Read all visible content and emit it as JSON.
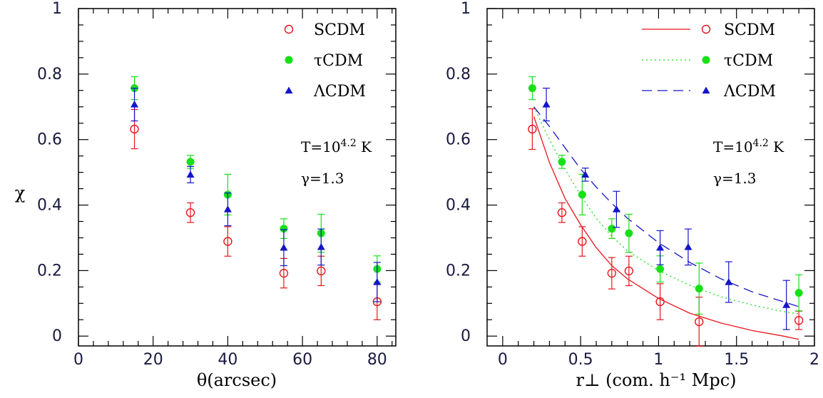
{
  "colors": {
    "SCDM": "#e8141c",
    "tauCDM": "#18e018",
    "LambdaCDM": "#1414c8",
    "axis": "#000000",
    "ticklabel": "#1a1a40"
  },
  "chart_data": [
    {
      "type": "scatter",
      "xlabel": "θ(arcsec)",
      "ylabel": "χ",
      "xlim": [
        0,
        85
      ],
      "ylim": [
        -0.03,
        1.0
      ],
      "xticks": [
        "0",
        "20",
        "40",
        "60",
        "80"
      ],
      "yticks": [
        "0",
        "0.2",
        "0.4",
        "0.6",
        "0.8",
        "1"
      ],
      "legend_position": "top-right",
      "series": [
        {
          "name": "SCDM",
          "marker": "open-circle",
          "points": [
            {
              "x": 15,
              "y": 0.632,
              "err": 0.06
            },
            {
              "x": 30,
              "y": 0.377,
              "err": 0.03
            },
            {
              "x": 40,
              "y": 0.289,
              "err": 0.045
            },
            {
              "x": 55,
              "y": 0.192,
              "err": 0.045
            },
            {
              "x": 65,
              "y": 0.199,
              "err": 0.045
            },
            {
              "x": 80,
              "y": 0.105,
              "err": 0.055
            }
          ]
        },
        {
          "name": "τCDM",
          "marker": "filled-circle",
          "points": [
            {
              "x": 15,
              "y": 0.757,
              "err": 0.035
            },
            {
              "x": 30,
              "y": 0.532,
              "err": 0.02
            },
            {
              "x": 40,
              "y": 0.432,
              "err": 0.062
            },
            {
              "x": 55,
              "y": 0.328,
              "err": 0.03
            },
            {
              "x": 65,
              "y": 0.314,
              "err": 0.058
            },
            {
              "x": 80,
              "y": 0.205,
              "err": 0.04
            }
          ]
        },
        {
          "name": "ΛCDM",
          "marker": "filled-triangle",
          "points": [
            {
              "x": 15,
              "y": 0.707,
              "err": 0.05
            },
            {
              "x": 30,
              "y": 0.493,
              "err": 0.025
            },
            {
              "x": 40,
              "y": 0.387,
              "err": 0.05
            },
            {
              "x": 55,
              "y": 0.27,
              "err": 0.055
            },
            {
              "x": 65,
              "y": 0.272,
              "err": 0.055
            },
            {
              "x": 80,
              "y": 0.165,
              "err": 0.06
            }
          ]
        }
      ],
      "annotations": [
        {
          "base": "T=10",
          "sup": "4.2",
          "suffix": " K"
        },
        {
          "base": "γ=1.3",
          "sup": "",
          "suffix": ""
        }
      ]
    },
    {
      "type": "line",
      "xlabel": "r⊥ (com. h⁻¹ Mpc)",
      "ylabel": "",
      "xlim": [
        -0.1,
        2.0
      ],
      "ylim": [
        -0.03,
        1.0
      ],
      "xticks": [
        "0",
        "0.5",
        "1",
        "1.5",
        "2"
      ],
      "yticks": [
        "0",
        "0.2",
        "0.4",
        "0.6",
        "0.8",
        "1"
      ],
      "legend_position": "top-right",
      "series": [
        {
          "name": "SCDM",
          "marker": "open-circle",
          "line": "solid",
          "points": [
            {
              "x": 0.19,
              "y": 0.632,
              "err": 0.062
            },
            {
              "x": 0.38,
              "y": 0.377,
              "err": 0.03
            },
            {
              "x": 0.51,
              "y": 0.289,
              "err": 0.045
            },
            {
              "x": 0.7,
              "y": 0.192,
              "err": 0.048
            },
            {
              "x": 0.81,
              "y": 0.199,
              "err": 0.045
            },
            {
              "x": 1.01,
              "y": 0.105,
              "err": 0.055
            },
            {
              "x": 1.26,
              "y": 0.044,
              "err": 0.075
            },
            {
              "x": 1.9,
              "y": 0.048,
              "err": 0.028
            }
          ],
          "curve": [
            [
              0.2,
              0.67
            ],
            [
              0.3,
              0.53
            ],
            [
              0.4,
              0.42
            ],
            [
              0.5,
              0.34
            ],
            [
              0.6,
              0.27
            ],
            [
              0.7,
              0.215
            ],
            [
              0.8,
              0.175
            ],
            [
              1.0,
              0.115
            ],
            [
              1.2,
              0.07
            ],
            [
              1.4,
              0.04
            ],
            [
              1.6,
              0.017
            ],
            [
              1.8,
              0.0
            ],
            [
              1.9,
              -0.01
            ]
          ]
        },
        {
          "name": "τCDM",
          "marker": "filled-circle",
          "line": "dotted",
          "points": [
            {
              "x": 0.19,
              "y": 0.757,
              "err": 0.035
            },
            {
              "x": 0.38,
              "y": 0.532,
              "err": 0.02
            },
            {
              "x": 0.51,
              "y": 0.432,
              "err": 0.062
            },
            {
              "x": 0.7,
              "y": 0.328,
              "err": 0.03
            },
            {
              "x": 0.81,
              "y": 0.314,
              "err": 0.058
            },
            {
              "x": 1.01,
              "y": 0.205,
              "err": 0.04
            },
            {
              "x": 1.26,
              "y": 0.145,
              "err": 0.078
            },
            {
              "x": 1.9,
              "y": 0.132,
              "err": 0.055
            }
          ],
          "curve": [
            [
              0.2,
              0.7
            ],
            [
              0.3,
              0.6
            ],
            [
              0.4,
              0.51
            ],
            [
              0.5,
              0.43
            ],
            [
              0.6,
              0.36
            ],
            [
              0.7,
              0.305
            ],
            [
              0.8,
              0.26
            ],
            [
              1.0,
              0.2
            ],
            [
              1.2,
              0.155
            ],
            [
              1.4,
              0.12
            ],
            [
              1.6,
              0.095
            ],
            [
              1.8,
              0.075
            ],
            [
              1.9,
              0.068
            ]
          ]
        },
        {
          "name": "ΛCDM",
          "marker": "filled-triangle",
          "line": "dashed",
          "points": [
            {
              "x": 0.28,
              "y": 0.707,
              "err": 0.05
            },
            {
              "x": 0.53,
              "y": 0.493,
              "err": 0.02
            },
            {
              "x": 0.73,
              "y": 0.387,
              "err": 0.055
            },
            {
              "x": 1.01,
              "y": 0.27,
              "err": 0.052
            },
            {
              "x": 1.19,
              "y": 0.272,
              "err": 0.055
            },
            {
              "x": 1.45,
              "y": 0.165,
              "err": 0.062
            },
            {
              "x": 1.82,
              "y": 0.095,
              "err": 0.075
            }
          ],
          "curve": [
            [
              0.2,
              0.7
            ],
            [
              0.3,
              0.64
            ],
            [
              0.4,
              0.575
            ],
            [
              0.5,
              0.51
            ],
            [
              0.6,
              0.455
            ],
            [
              0.7,
              0.405
            ],
            [
              0.8,
              0.36
            ],
            [
              1.0,
              0.285
            ],
            [
              1.2,
              0.225
            ],
            [
              1.4,
              0.175
            ],
            [
              1.6,
              0.135
            ],
            [
              1.8,
              0.105
            ],
            [
              1.9,
              0.09
            ]
          ]
        }
      ],
      "annotations": [
        {
          "base": "T=10",
          "sup": "4.2",
          "suffix": " K"
        },
        {
          "base": "γ=1.3",
          "sup": "",
          "suffix": ""
        }
      ]
    }
  ]
}
